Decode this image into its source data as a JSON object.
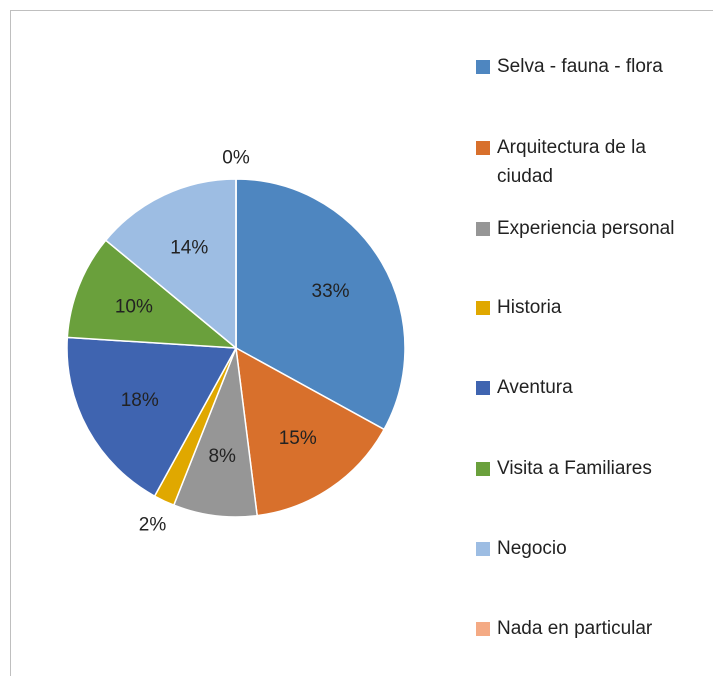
{
  "chart_data": {
    "type": "pie",
    "categories": [
      "Selva - fauna - flora",
      "Arquitectura de la ciudad",
      "Experiencia personal",
      "Historia",
      "Aventura",
      "Visita a Familiares",
      "Negocio",
      "Nada en particular"
    ],
    "values": [
      33,
      15,
      8,
      2,
      18,
      10,
      14,
      0
    ],
    "value_labels": [
      "33%",
      "15%",
      "8%",
      "2%",
      "18%",
      "10%",
      "14%",
      "0%"
    ],
    "colors": [
      "#4e86c0",
      "#d8702c",
      "#969696",
      "#e0a800",
      "#3f64b0",
      "#6aa03c",
      "#9dbde3",
      "#f4aa84"
    ],
    "legend": "right"
  }
}
